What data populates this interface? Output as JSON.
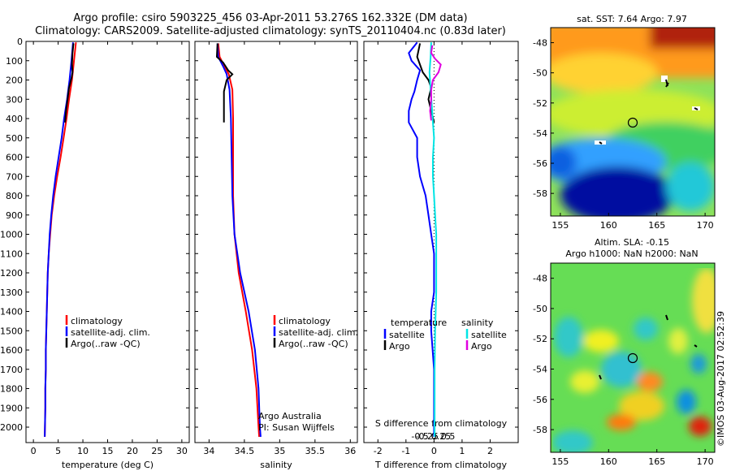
{
  "header": {
    "line1": "Argo profile: csiro 5903225_456 03-Apr-2011 53.276S 162.332E (DM data)",
    "line2": "Climatology: CARS2009. Satellite-adjusted climatology: synTS_20110404.nc (0.83d later)"
  },
  "footer_stamp": "©IMOS 03-Aug-2017 02:52:39",
  "colors": {
    "climatology": "#ff0000",
    "satellite": "#0000ff",
    "argo": "#000000",
    "sal_satellite": "#00e5e5",
    "sal_argo": "#e000e0"
  },
  "chart_data": [
    {
      "type": "line",
      "name": "temperature-profile",
      "xlabel": "temperature (deg C)",
      "ylabel": "",
      "xlim": [
        -1.5,
        31.5
      ],
      "ylim": [
        2080,
        0
      ],
      "xticks": [
        0,
        5,
        10,
        15,
        20,
        25,
        30
      ],
      "yticks": [
        0,
        100,
        200,
        300,
        400,
        500,
        600,
        700,
        800,
        900,
        1000,
        1100,
        1200,
        1300,
        1400,
        1500,
        1600,
        1700,
        1800,
        1900,
        2000
      ],
      "legend": [
        "climatology",
        "satellite-adj. clim.",
        "Argo(..raw -QC)"
      ],
      "series": [
        {
          "name": "climatology",
          "color": "#ff0000",
          "points": [
            [
              8.6,
              5
            ],
            [
              8.2,
              100
            ],
            [
              7.8,
              200
            ],
            [
              7.2,
              300
            ],
            [
              6.7,
              400
            ],
            [
              6.1,
              500
            ],
            [
              5.5,
              600
            ],
            [
              4.8,
              700
            ],
            [
              4.2,
              800
            ],
            [
              3.7,
              900
            ],
            [
              3.4,
              1000
            ],
            [
              3.1,
              1100
            ],
            [
              2.9,
              1200
            ],
            [
              2.8,
              1300
            ],
            [
              2.7,
              1400
            ],
            [
              2.6,
              1500
            ],
            [
              2.5,
              1600
            ],
            [
              2.5,
              1700
            ],
            [
              2.4,
              1800
            ],
            [
              2.4,
              1900
            ],
            [
              2.3,
              2050
            ]
          ]
        },
        {
          "name": "satellite-adj. clim.",
          "color": "#0000ff",
          "points": [
            [
              8.0,
              5
            ],
            [
              7.7,
              100
            ],
            [
              7.3,
              200
            ],
            [
              6.8,
              300
            ],
            [
              6.2,
              400
            ],
            [
              5.7,
              500
            ],
            [
              5.1,
              600
            ],
            [
              4.5,
              700
            ],
            [
              4.0,
              800
            ],
            [
              3.6,
              900
            ],
            [
              3.3,
              1000
            ],
            [
              3.1,
              1100
            ],
            [
              2.9,
              1200
            ],
            [
              2.8,
              1300
            ],
            [
              2.7,
              1400
            ],
            [
              2.6,
              1500
            ],
            [
              2.5,
              1600
            ],
            [
              2.5,
              1700
            ],
            [
              2.4,
              1800
            ],
            [
              2.4,
              1900
            ],
            [
              2.3,
              2050
            ]
          ]
        },
        {
          "name": "Argo(..raw -QC)",
          "color": "#000000",
          "points": [
            [
              8.1,
              10
            ],
            [
              7.9,
              60
            ],
            [
              7.8,
              120
            ],
            [
              7.9,
              160
            ],
            [
              7.7,
              190
            ],
            [
              7.2,
              240
            ],
            [
              6.9,
              300
            ],
            [
              6.6,
              360
            ],
            [
              6.4,
              420
            ]
          ]
        }
      ],
      "annotations": []
    },
    {
      "type": "line",
      "name": "salinity-profile",
      "xlabel": "salinity",
      "ylabel": "",
      "xlim": [
        33.8,
        36.1
      ],
      "ylim": [
        2080,
        0
      ],
      "xticks": [
        34,
        34.5,
        35,
        35.5,
        36
      ],
      "legend": [
        "climatology",
        "satellite-adj. clim.",
        "Argo(..raw -QC)"
      ],
      "series": [
        {
          "name": "climatology",
          "color": "#ff0000",
          "points": [
            [
              34.13,
              10
            ],
            [
              34.15,
              80
            ],
            [
              34.22,
              130
            ],
            [
              34.28,
              170
            ],
            [
              34.33,
              250
            ],
            [
              34.34,
              400
            ],
            [
              34.34,
              600
            ],
            [
              34.34,
              800
            ],
            [
              34.36,
              1000
            ],
            [
              34.42,
              1200
            ],
            [
              34.52,
              1400
            ],
            [
              34.61,
              1600
            ],
            [
              34.67,
              1800
            ],
            [
              34.7,
              2000
            ],
            [
              34.71,
              2050
            ]
          ]
        },
        {
          "name": "satellite-adj. clim.",
          "color": "#0000ff",
          "points": [
            [
              34.12,
              10
            ],
            [
              34.13,
              80
            ],
            [
              34.2,
              130
            ],
            [
              34.25,
              170
            ],
            [
              34.29,
              250
            ],
            [
              34.31,
              400
            ],
            [
              34.32,
              600
            ],
            [
              34.33,
              800
            ],
            [
              34.36,
              1000
            ],
            [
              34.44,
              1200
            ],
            [
              34.56,
              1400
            ],
            [
              34.65,
              1600
            ],
            [
              34.7,
              1800
            ],
            [
              34.72,
              2000
            ],
            [
              34.73,
              2050
            ]
          ]
        },
        {
          "name": "Argo(..raw -QC)",
          "color": "#000000",
          "points": [
            [
              34.12,
              10
            ],
            [
              34.11,
              80
            ],
            [
              34.2,
              110
            ],
            [
              34.27,
              150
            ],
            [
              34.33,
              170
            ],
            [
              34.25,
              200
            ],
            [
              34.21,
              260
            ],
            [
              34.21,
              330
            ],
            [
              34.21,
              420
            ]
          ]
        }
      ],
      "annotations": [
        "Argo Australia",
        "PI: Susan Wijffels"
      ]
    },
    {
      "type": "line",
      "name": "difference-profile",
      "xlabel": "T difference from climatology",
      "ylabel": "",
      "xlim": [
        -2.5,
        3.0
      ],
      "ylim": [
        2080,
        0
      ],
      "xticks": [
        -2,
        -1,
        0,
        1,
        2
      ],
      "secondary_xlabel": "S difference from climatology",
      "secondary_xticks": [
        -0.5,
        -0.25,
        0,
        0.25,
        0.5
      ],
      "legend": [
        "temperature",
        "satellite",
        "Argo",
        "salinity",
        "satellite",
        "Argo"
      ],
      "series": [
        {
          "name": "temperature satellite",
          "color": "#0000ff",
          "points": [
            [
              -0.6,
              5
            ],
            [
              -0.9,
              60
            ],
            [
              -0.8,
              100
            ],
            [
              -0.5,
              150
            ],
            [
              -0.6,
              200
            ],
            [
              -0.7,
              260
            ],
            [
              -0.8,
              300
            ],
            [
              -0.9,
              360
            ],
            [
              -0.9,
              420
            ],
            [
              -0.6,
              500
            ],
            [
              -0.6,
              600
            ],
            [
              -0.5,
              700
            ],
            [
              -0.3,
              800
            ],
            [
              -0.2,
              900
            ],
            [
              -0.1,
              1000
            ],
            [
              0,
              1100
            ],
            [
              0,
              1200
            ],
            [
              0,
              1300
            ],
            [
              -0.1,
              1400
            ],
            [
              -0.1,
              1500
            ],
            [
              0,
              1700
            ],
            [
              0,
              1900
            ],
            [
              0,
              2050
            ]
          ]
        },
        {
          "name": "temperature Argo",
          "color": "#000000",
          "points": [
            [
              -0.5,
              10
            ],
            [
              -0.6,
              80
            ],
            [
              -0.4,
              160
            ],
            [
              -0.2,
              200
            ],
            [
              -0.1,
              240
            ],
            [
              -0.2,
              300
            ],
            [
              -0.1,
              360
            ],
            [
              0,
              420
            ]
          ]
        },
        {
          "name": "salinity satellite",
          "color": "#00e5e5",
          "points": [
            [
              -0.05,
              5
            ],
            [
              -0.06,
              80
            ],
            [
              -0.08,
              160
            ],
            [
              -0.06,
              250
            ],
            [
              -0.04,
              330
            ],
            [
              -0.02,
              420
            ],
            [
              0.0,
              500
            ],
            [
              -0.02,
              600
            ],
            [
              -0.02,
              700
            ],
            [
              0,
              800
            ],
            [
              0.02,
              900
            ],
            [
              0.04,
              1000
            ],
            [
              0.04,
              1100
            ],
            [
              0.04,
              1200
            ],
            [
              0.04,
              1300
            ],
            [
              0.03,
              1400
            ],
            [
              0.02,
              1500
            ],
            [
              0.01,
              1700
            ],
            [
              0.01,
              1900
            ],
            [
              0.01,
              2050
            ]
          ]
        },
        {
          "name": "salinity Argo",
          "color": "#e000e0",
          "points": [
            [
              -0.03,
              20
            ],
            [
              -0.05,
              60
            ],
            [
              0.02,
              90
            ],
            [
              0.12,
              120
            ],
            [
              0.08,
              160
            ],
            [
              -0.02,
              200
            ],
            [
              -0.05,
              250
            ],
            [
              -0.05,
              300
            ],
            [
              -0.07,
              360
            ],
            [
              -0.05,
              410
            ]
          ]
        }
      ],
      "annotations": []
    },
    {
      "type": "heatmap",
      "name": "sst-map",
      "title": "sat. SST: 7.64 Argo: 7.97",
      "xlim": [
        154,
        171
      ],
      "ylim": [
        -59.5,
        -47
      ],
      "xticks": [
        155,
        160,
        165,
        170
      ],
      "yticks": [
        -48,
        -50,
        -52,
        -54,
        -56,
        -58
      ]
    },
    {
      "type": "heatmap",
      "name": "sla-map",
      "title": "Altim. SLA: -0.15",
      "subtitle": "Argo h1000: NaN h2000: NaN",
      "xlim": [
        154,
        171
      ],
      "ylim": [
        -59.5,
        -47
      ],
      "xticks": [
        155,
        160,
        165,
        170
      ],
      "yticks": [
        -48,
        -50,
        -52,
        -54,
        -56,
        -58
      ]
    }
  ]
}
